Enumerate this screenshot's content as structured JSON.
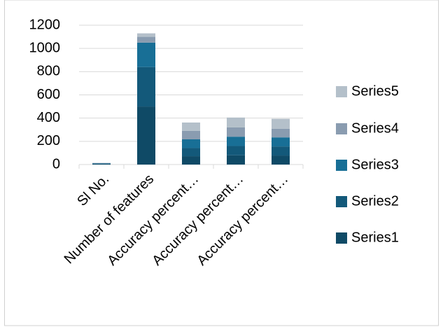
{
  "chart_data": {
    "type": "stacked_bar",
    "categories": [
      "Sl No.",
      "Number of features",
      "Accuracy percent…",
      "Accuracy percent…",
      "Accuracy percent…"
    ],
    "series": [
      {
        "name": "Series1",
        "color": "#0f4a66",
        "values": [
          3,
          500,
          72,
          80,
          78
        ]
      },
      {
        "name": "Series2",
        "color": "#13597a",
        "values": [
          3,
          340,
          70,
          80,
          78
        ]
      },
      {
        "name": "Series3",
        "color": "#186f96",
        "values": [
          3,
          210,
          75,
          80,
          78
        ]
      },
      {
        "name": "Series4",
        "color": "#8a9cb0",
        "values": [
          3,
          50,
          73,
          80,
          75
        ]
      },
      {
        "name": "Series5",
        "color": "#b4c0ca",
        "values": [
          3,
          30,
          72,
          85,
          85
        ]
      }
    ],
    "ylim": [
      0,
      1200
    ],
    "yticks": [
      0,
      200,
      400,
      600,
      800,
      1000,
      1200
    ],
    "grid": true,
    "legend": "right"
  }
}
